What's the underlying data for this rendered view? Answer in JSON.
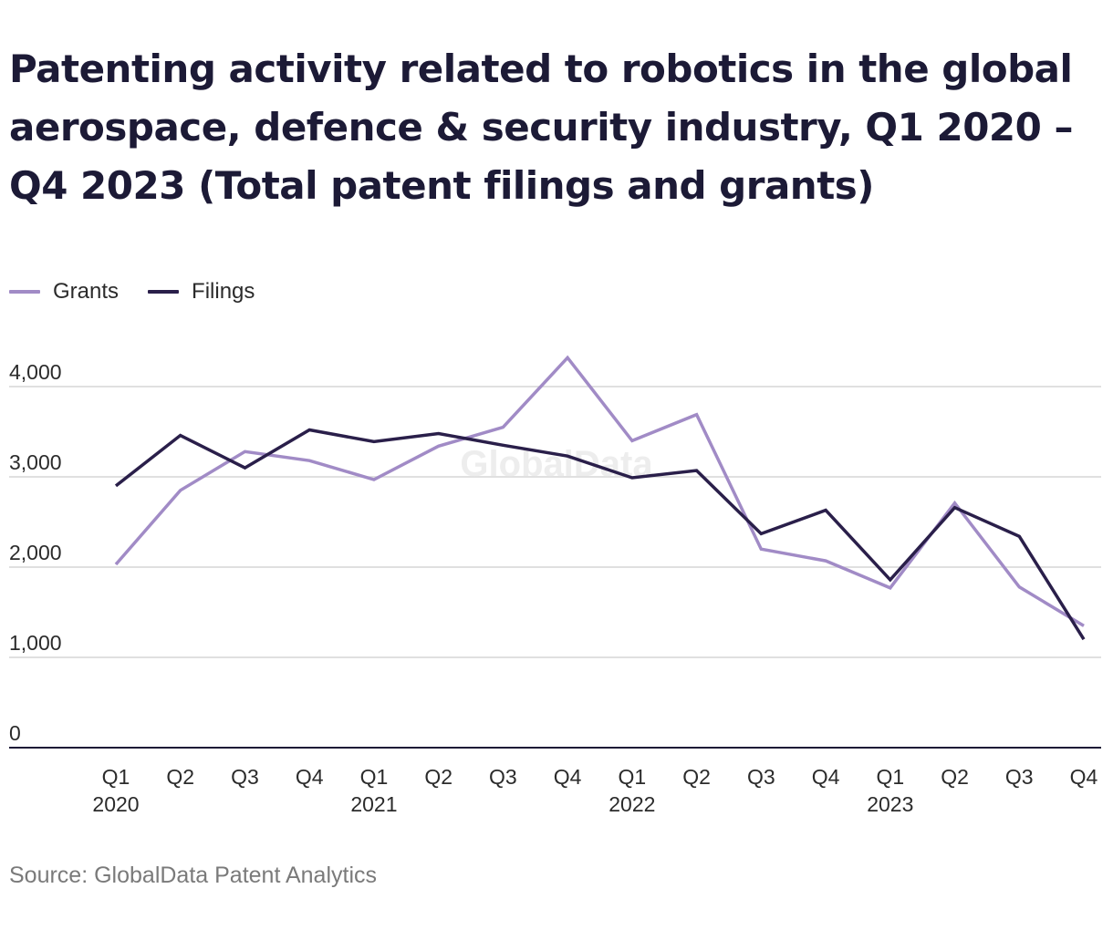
{
  "title": "Patenting activity related to robotics in the global aerospace, defence & security industry, Q1 2020 – Q4 2023 (Total patent filings and grants)",
  "source": "Source: GlobalData Patent Analytics",
  "watermark": "GlobalData",
  "colors": {
    "grants": "#a18bc6",
    "filings": "#2a1f4a",
    "grid": "#d6d6d6",
    "axis": "#1c1a36",
    "text": "#2b2b2b"
  },
  "legend": [
    {
      "label": "Grants",
      "series": "grants"
    },
    {
      "label": "Filings",
      "series": "filings"
    }
  ],
  "chart_data": {
    "type": "line",
    "categories": [
      "Q1 2020",
      "Q2 2020",
      "Q3 2020",
      "Q4 2020",
      "Q1 2021",
      "Q2 2021",
      "Q3 2021",
      "Q4 2021",
      "Q1 2022",
      "Q2 2022",
      "Q3 2022",
      "Q4 2022",
      "Q1 2023",
      "Q2 2023",
      "Q3 2023",
      "Q4 2023"
    ],
    "x_tick_labels": [
      {
        "quarter": "Q1",
        "year": "2020"
      },
      {
        "quarter": "Q2",
        "year": ""
      },
      {
        "quarter": "Q3",
        "year": ""
      },
      {
        "quarter": "Q4",
        "year": ""
      },
      {
        "quarter": "Q1",
        "year": "2021"
      },
      {
        "quarter": "Q2",
        "year": ""
      },
      {
        "quarter": "Q3",
        "year": ""
      },
      {
        "quarter": "Q4",
        "year": ""
      },
      {
        "quarter": "Q1",
        "year": "2022"
      },
      {
        "quarter": "Q2",
        "year": ""
      },
      {
        "quarter": "Q3",
        "year": ""
      },
      {
        "quarter": "Q4",
        "year": ""
      },
      {
        "quarter": "Q1",
        "year": "2023"
      },
      {
        "quarter": "Q2",
        "year": ""
      },
      {
        "quarter": "Q3",
        "year": ""
      },
      {
        "quarter": "Q4",
        "year": ""
      }
    ],
    "series": [
      {
        "name": "Grants",
        "key": "grants",
        "values": [
          2030,
          2850,
          3280,
          3180,
          2970,
          3340,
          3550,
          4320,
          3400,
          3690,
          2200,
          2070,
          1770,
          2710,
          1780,
          1350
        ]
      },
      {
        "name": "Filings",
        "key": "filings",
        "values": [
          2900,
          3460,
          3100,
          3520,
          3390,
          3480,
          3350,
          3230,
          2990,
          3070,
          2370,
          2630,
          1860,
          2660,
          2340,
          1200
        ]
      }
    ],
    "y_ticks": [
      0,
      1000,
      2000,
      3000,
      4000
    ],
    "y_tick_labels": [
      "0",
      "1,000",
      "2,000",
      "3,000",
      "4,000"
    ],
    "ylim": [
      0,
      4000
    ],
    "grid": true,
    "legend_position": "top-left"
  }
}
